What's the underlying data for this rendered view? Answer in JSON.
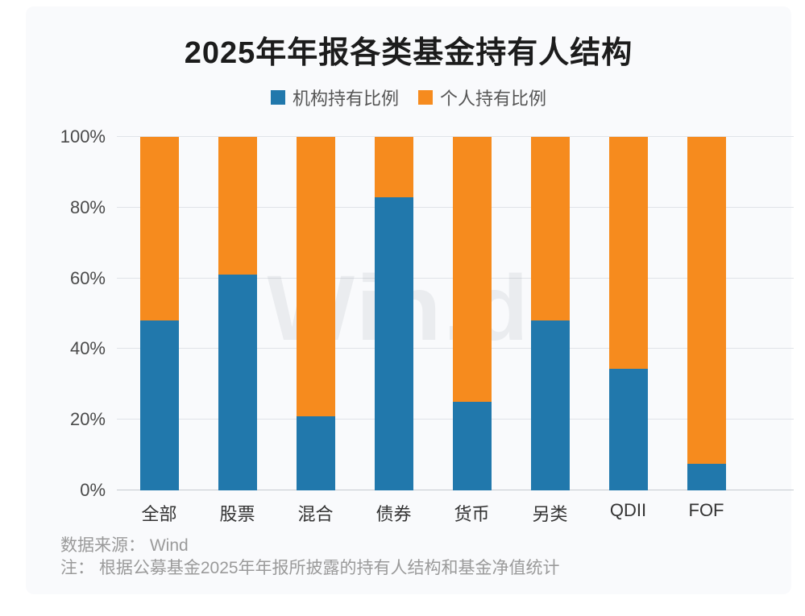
{
  "page": {
    "background": "#ffffff",
    "card_background": "#f9fafc"
  },
  "title": "2025年年报各类基金持有人结构",
  "legend": [
    {
      "label": "机构持有比例",
      "color": "#2178ac"
    },
    {
      "label": "个人持有比例",
      "color": "#f68b1e"
    }
  ],
  "watermark": {
    "text": "Win.d"
  },
  "footer": {
    "source": "数据来源： Wind",
    "note": "注： 根据公募基金2025年年报所披露的持有人结构和基金净值统计"
  },
  "chart_data": {
    "type": "bar",
    "stacked": true,
    "title": "2025年年报各类基金持有人结构",
    "categories": [
      "全部",
      "股票",
      "混合",
      "债券",
      "货币",
      "另类",
      "QDII",
      "FOF"
    ],
    "series": [
      {
        "name": "机构持有比例",
        "color": "#2178ac",
        "values": [
          48,
          61,
          21,
          83,
          25,
          48,
          34.5,
          7.5
        ]
      },
      {
        "name": "个人持有比例",
        "color": "#f68b1e",
        "values": [
          52,
          39,
          79,
          17,
          75,
          52,
          65.5,
          92.5
        ]
      }
    ],
    "xlabel": "",
    "ylabel": "",
    "ylim": [
      0,
      100
    ],
    "yticks": [
      "0%",
      "20%",
      "40%",
      "60%",
      "80%",
      "100%"
    ],
    "grid": true,
    "legend_position": "top",
    "bar_color_blue": "#2178ac",
    "bar_color_orange": "#f68b1e"
  }
}
